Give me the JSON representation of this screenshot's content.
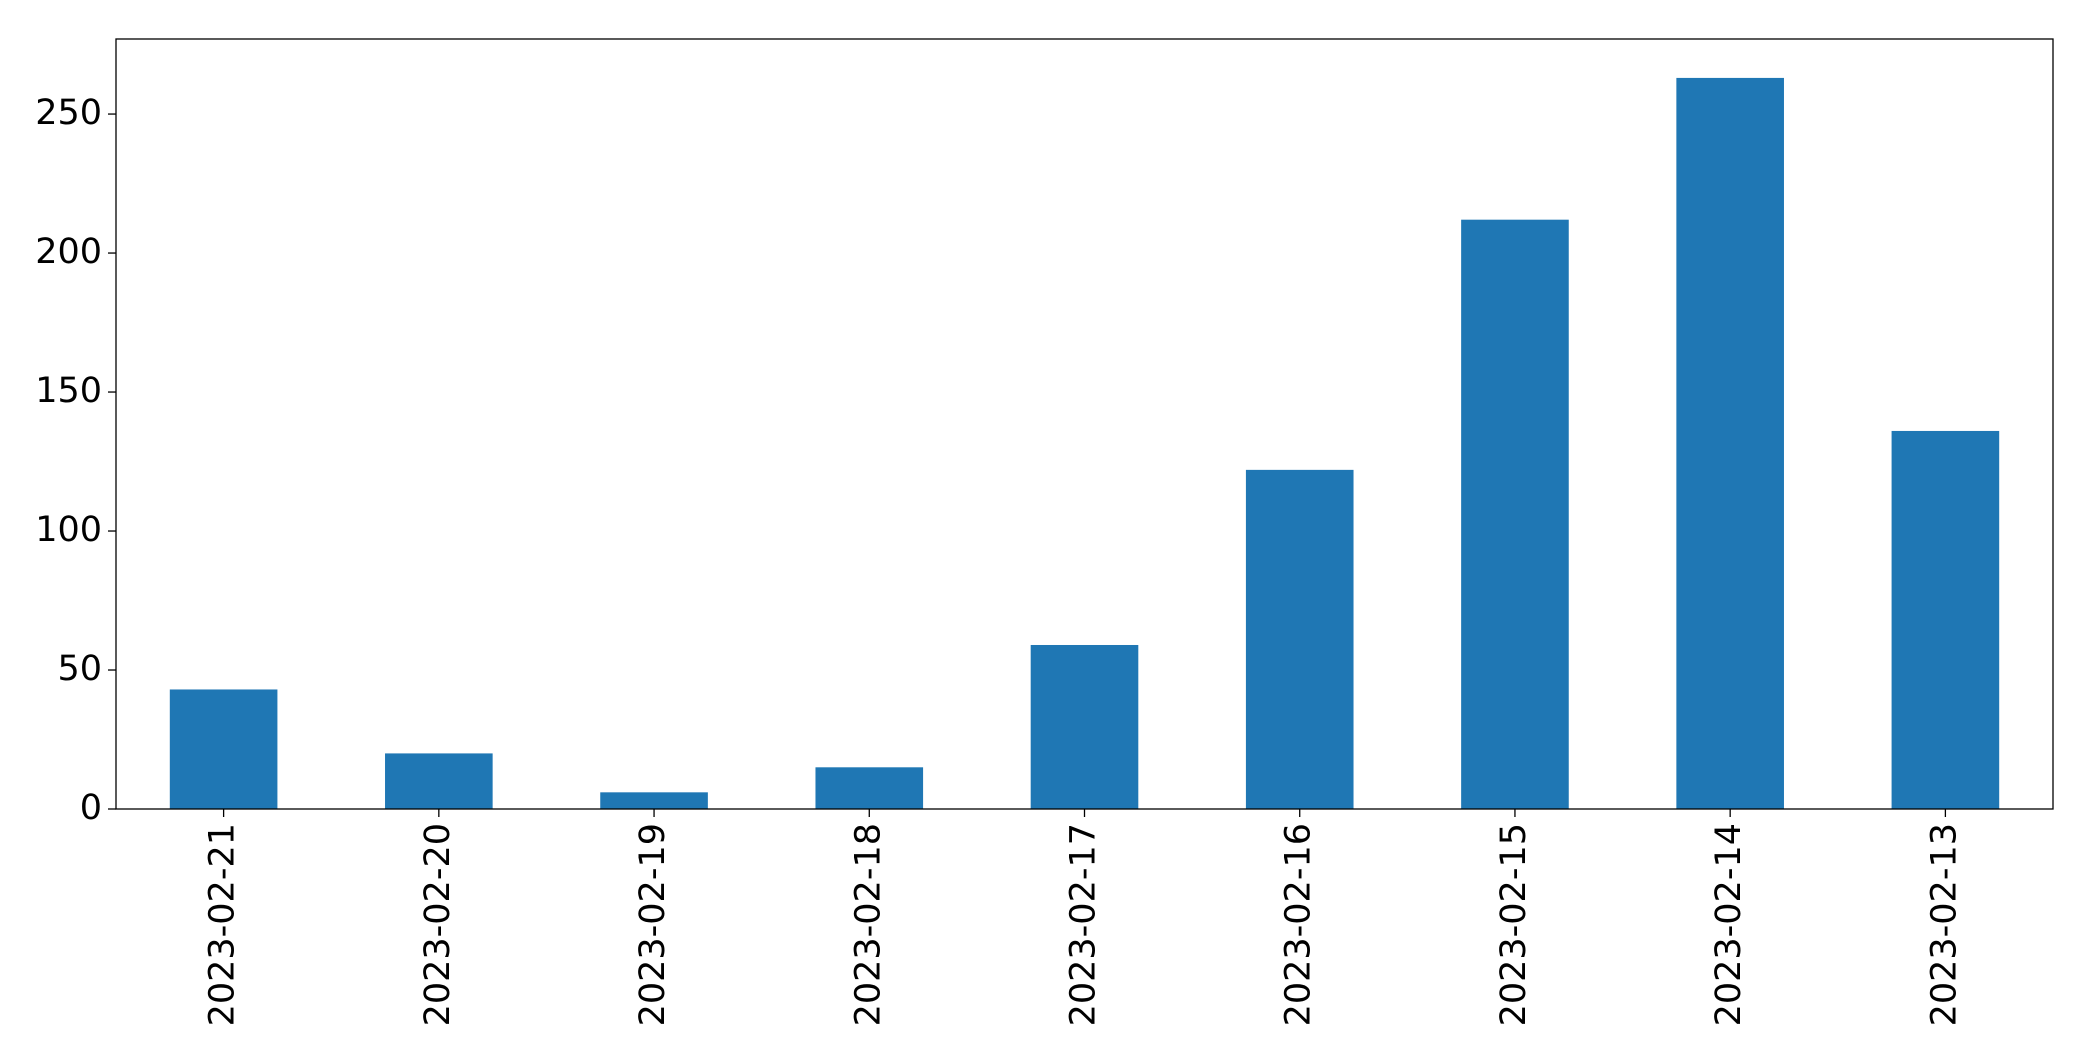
{
  "chart_data": {
    "type": "bar",
    "categories": [
      "2023-02-21",
      "2023-02-20",
      "2023-02-19",
      "2023-02-18",
      "2023-02-17",
      "2023-02-16",
      "2023-02-15",
      "2023-02-14",
      "2023-02-13"
    ],
    "values": [
      43,
      20,
      6,
      15,
      59,
      122,
      212,
      263,
      136
    ],
    "color": "#1f77b4",
    "ylim": [
      0,
      277
    ],
    "yticks": [
      0,
      50,
      100,
      150,
      200,
      250
    ],
    "grid": false
  }
}
